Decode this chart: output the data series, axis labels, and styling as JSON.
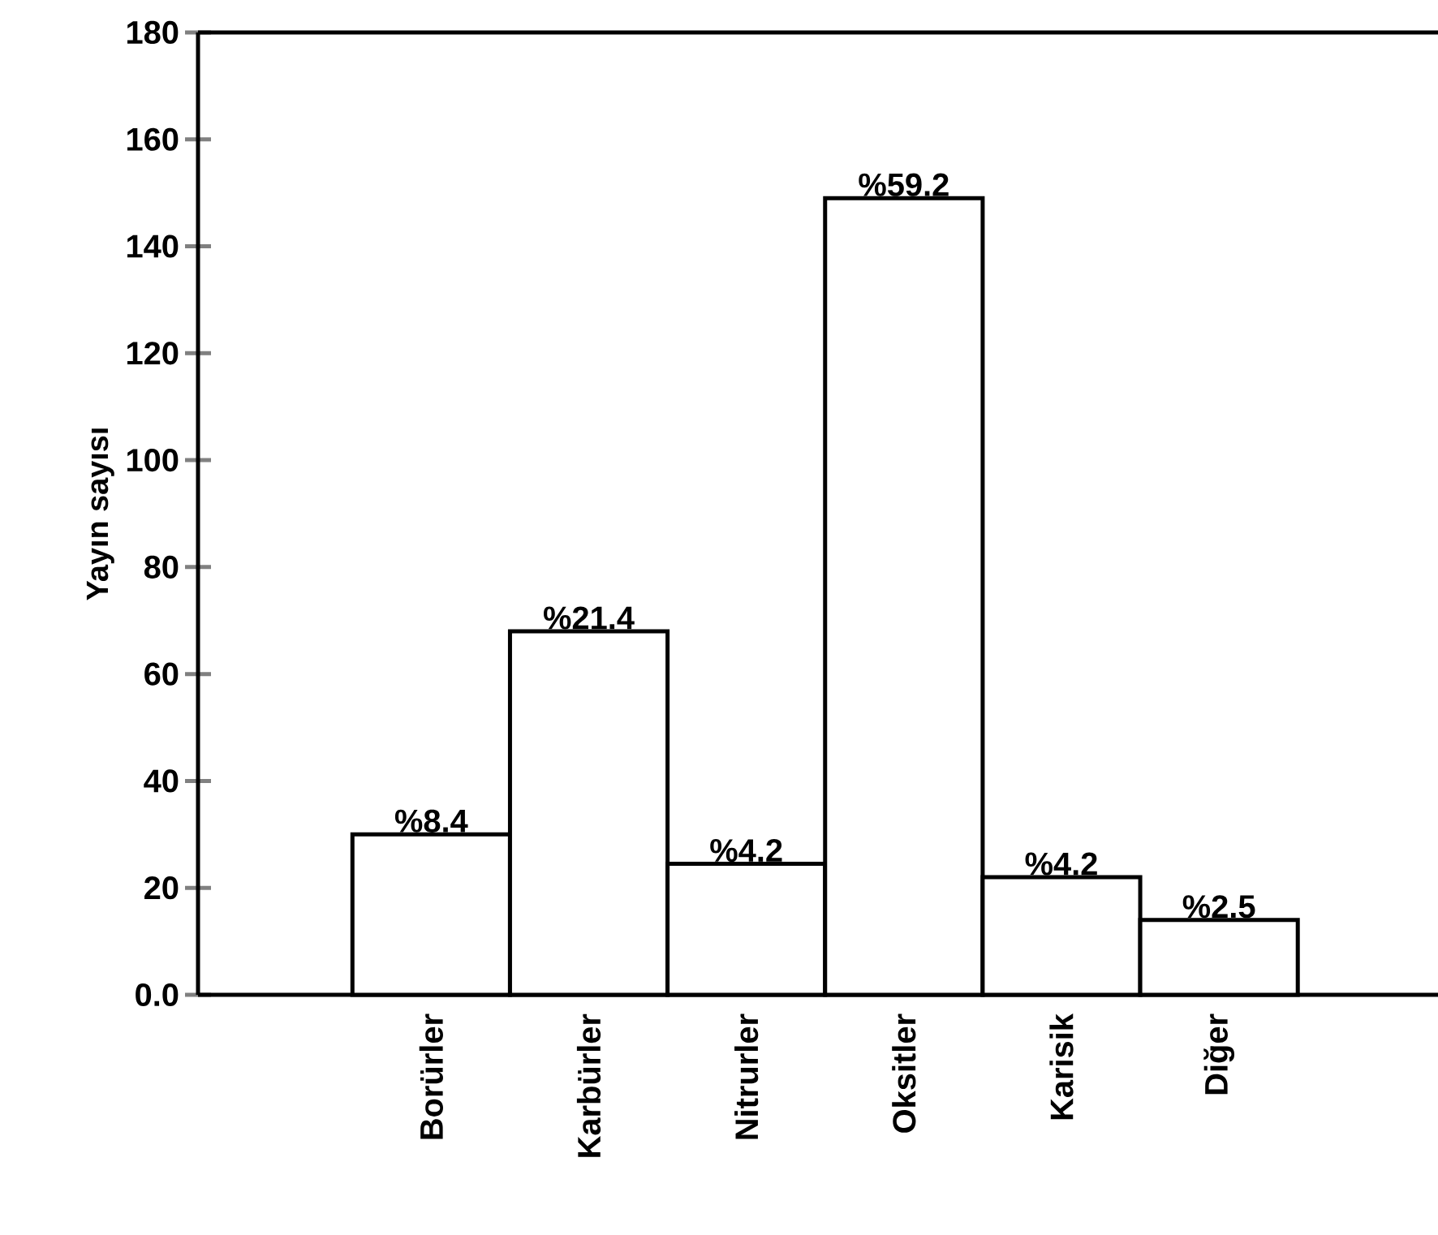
{
  "chart_data": {
    "type": "bar",
    "ylabel": "Yayın sayısı",
    "categories": [
      "Borürler",
      "Karbürler",
      "Nitrurler",
      "Oksitler",
      "Karisik",
      "Diğer"
    ],
    "values": [
      30,
      68,
      24.5,
      149,
      22,
      14
    ],
    "annotations": [
      {
        "text": "%8.4",
        "x": "Borürler",
        "y": 30
      },
      {
        "text": "%21.4",
        "x": "Karbürler",
        "y": 68
      },
      {
        "text": "%4.2",
        "x": "Nitrurler",
        "y": 24.5
      },
      {
        "text": "%59.2",
        "x": "Oksitler",
        "y": 149
      },
      {
        "text": "%4.2",
        "x": "Karisik",
        "y": 22
      },
      {
        "text": "%2.5",
        "x": "Diğer",
        "y": 14
      }
    ],
    "color": "#ffffff",
    "ylim": [
      0,
      180
    ],
    "yticks": [
      {
        "value": 0,
        "label": "0.0"
      },
      20,
      40,
      60,
      80,
      100,
      120,
      140,
      160,
      180
    ]
  }
}
